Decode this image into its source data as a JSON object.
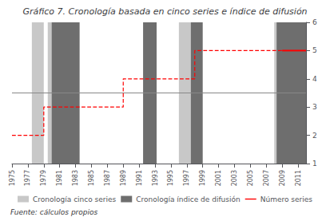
{
  "chart_data": {
    "type": "line",
    "title": "Gráfico 7. Cronología basada en cinco series e índice de difusión",
    "footer": "Fuente: cálculos propios",
    "xlim": [
      1975,
      2012
    ],
    "xticks": [
      1975,
      1977,
      1979,
      1981,
      1983,
      1985,
      1987,
      1989,
      1991,
      1993,
      1995,
      1997,
      1999,
      2001,
      2003,
      2005,
      2007,
      2009,
      2011
    ],
    "ylim": [
      1,
      6
    ],
    "yticks": [
      1,
      2,
      3,
      4,
      5,
      6
    ],
    "grid": false,
    "legend": "bottom",
    "bands": [
      {
        "name": "Cronología cinco series",
        "color": "#c8c8c8",
        "ranges": [
          [
            1977.5,
            1979.0
          ],
          [
            1979.5,
            1983.5
          ],
          [
            1991.5,
            1993.0
          ],
          [
            1996.0,
            1997.5
          ],
          [
            1998.0,
            1998.8
          ],
          [
            2008.0,
            2009.2
          ],
          [
            2010.3,
            2012.0
          ]
        ]
      },
      {
        "name": "Cronología índice de difusión",
        "color": "#6e6e6e",
        "ranges": [
          [
            1980.0,
            1983.5
          ],
          [
            1991.5,
            1993.2
          ],
          [
            1997.5,
            1999.0
          ],
          [
            2008.3,
            2012.0
          ]
        ]
      }
    ],
    "reference_line": {
      "y": 3.5,
      "color": "#888888"
    },
    "series": [
      {
        "name": "Número series",
        "color": "#ff0000",
        "line_style": "dashed",
        "x": [
          1975,
          1979,
          1979,
          1989,
          1989,
          1998,
          1998,
          2009
        ],
        "values": [
          2,
          2,
          3,
          3,
          4,
          4,
          5,
          5
        ]
      },
      {
        "color": "#ff0000",
        "line_style": "solid",
        "x": [
          2009,
          2012
        ],
        "values": [
          5,
          5
        ]
      }
    ]
  }
}
